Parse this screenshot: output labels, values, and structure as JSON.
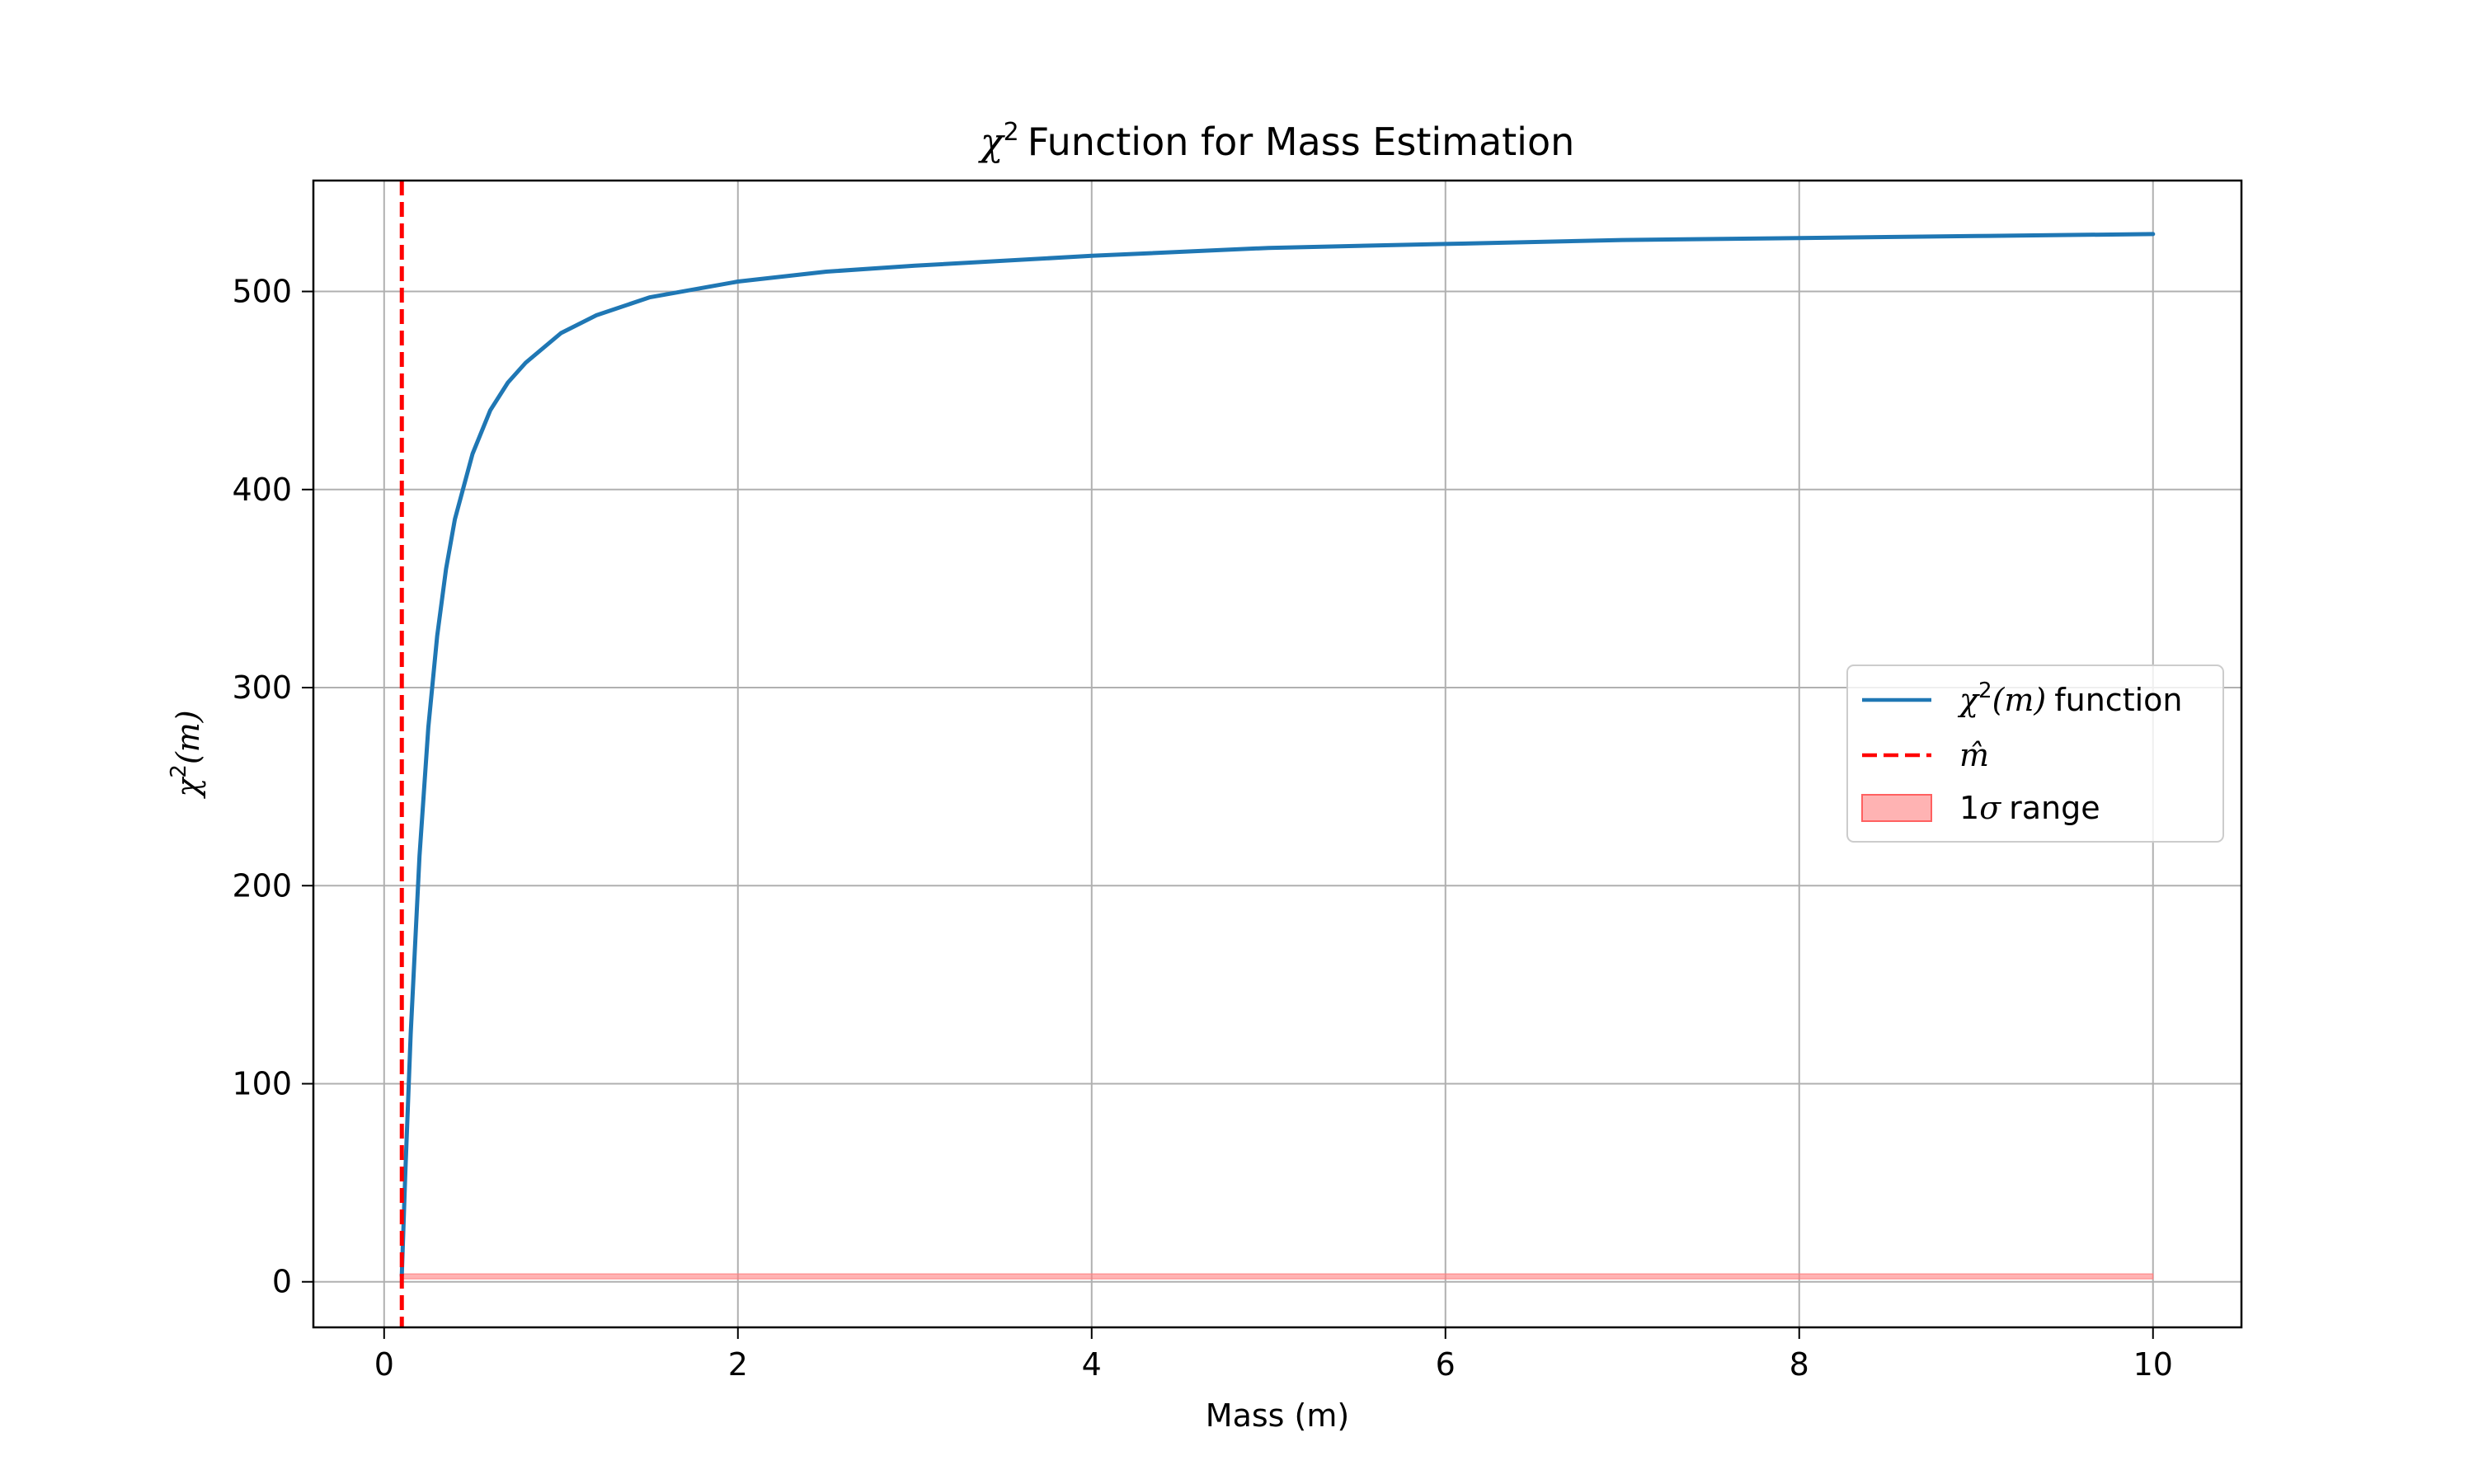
{
  "chart_data": {
    "type": "line",
    "title": "Function for Mass Estimation",
    "title_math": "χ",
    "title_sup": "2",
    "xlabel": "Mass (m)",
    "ylabel_math": "χ",
    "ylabel_sup": "2",
    "ylabel_arg": "(m)",
    "xlim": [
      -0.4,
      10.5
    ],
    "ylim": [
      -23,
      556
    ],
    "xticks": [
      0,
      2,
      4,
      6,
      8,
      10
    ],
    "yticks": [
      0,
      100,
      200,
      300,
      400,
      500
    ],
    "grid": true,
    "legend_placement": "center-right",
    "series": [
      {
        "name": "function",
        "name_math": "χ",
        "name_sup": "2",
        "name_arg": "(m)",
        "kind": "line",
        "color": "#1f77b4",
        "x": [
          0.1,
          0.12,
          0.15,
          0.2,
          0.25,
          0.3,
          0.35,
          0.4,
          0.5,
          0.6,
          0.7,
          0.8,
          1.0,
          1.2,
          1.5,
          2.0,
          2.5,
          3.0,
          4.0,
          5.0,
          6.0,
          7.0,
          8.0,
          9.0,
          10.0
        ],
        "y": [
          3,
          55,
          125,
          215,
          280,
          326,
          360,
          385,
          418,
          440,
          454,
          464,
          479,
          488,
          497,
          505,
          510,
          513,
          518,
          522,
          524,
          526,
          527,
          528,
          529
        ]
      },
      {
        "name_math": "m̂",
        "kind": "vline",
        "color": "#ff0000",
        "x": 0.1
      },
      {
        "name": "range",
        "name_prefix": "1",
        "name_math": "σ",
        "kind": "band",
        "color": "#ff8080",
        "x": [
          0.1,
          10.0
        ],
        "y": [
          1.5,
          4.0
        ]
      }
    ]
  }
}
